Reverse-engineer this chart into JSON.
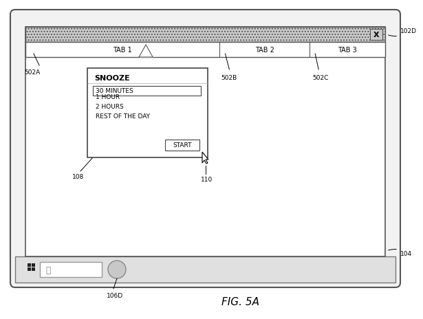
{
  "fig_width": 5.88,
  "fig_height": 4.45,
  "bg_color": "#ffffff",
  "label_102D": "102D",
  "label_104": "104",
  "label_502A": "502A",
  "label_502B": "502B",
  "label_502C": "502C",
  "label_108": "108",
  "label_110": "110",
  "label_106D": "106D",
  "fig_label": "FIG. 5A",
  "tab1": "TAB 1",
  "tab2": "TAB 2",
  "tab3": "TAB 3",
  "snooze_title": "SNOOZE",
  "menu_items": [
    "30 MINUTES",
    "1 HOUR",
    "2 HOURS",
    "REST OF THE DAY"
  ],
  "start_btn": "START",
  "x_btn": "X"
}
